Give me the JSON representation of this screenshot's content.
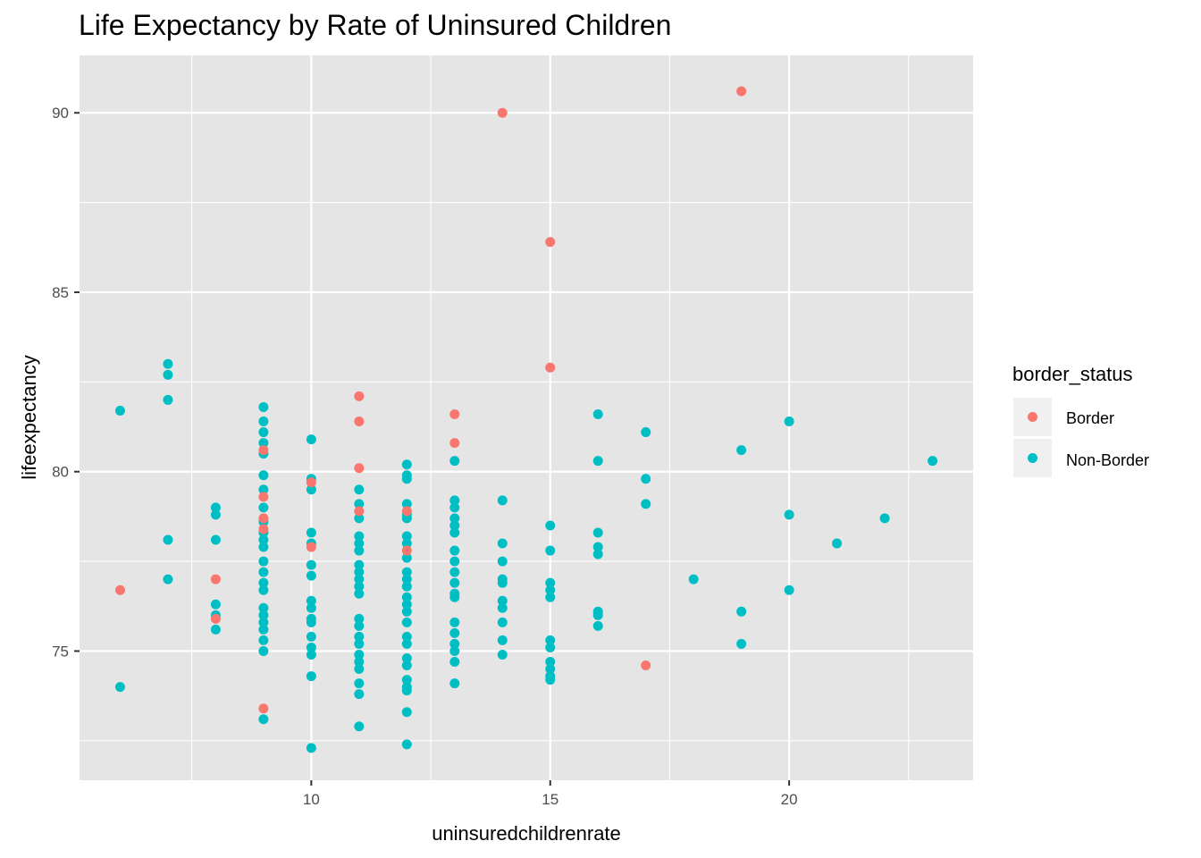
{
  "chart_data": {
    "type": "scatter",
    "title": "Life Expectancy by Rate of Uninsured Children",
    "xlabel": "uninsuredchildrenrate",
    "ylabel": "lifeexpectancy",
    "xlim": [
      5.15,
      23.85
    ],
    "ylim": [
      71.4,
      91.6
    ],
    "x_ticks": [
      10,
      15,
      20
    ],
    "x_minor": [
      7.5,
      12.5,
      17.5,
      22.5
    ],
    "y_ticks": [
      75,
      80,
      85,
      90
    ],
    "y_minor": [
      72.5,
      77.5,
      82.5,
      87.5
    ],
    "x_tick_labels": [
      "10",
      "15",
      "20"
    ],
    "y_tick_labels": [
      "75",
      "80",
      "85",
      "90"
    ],
    "grid": true,
    "legend": {
      "title": "border_status",
      "placement": "right",
      "entries": [
        "Border",
        "Non-Border"
      ]
    },
    "colors": {
      "panel": "#e5e5e5",
      "grid": "#ffffff",
      "legend_key": "#f0f0f0",
      "Border": "#f8766d",
      "Non-Border": "#00bfc4"
    },
    "series": [
      {
        "name": "Border",
        "points": [
          [
            6,
            76.7
          ],
          [
            8,
            77.0
          ],
          [
            8,
            75.9
          ],
          [
            9,
            80.6
          ],
          [
            9,
            79.3
          ],
          [
            9,
            78.7
          ],
          [
            9,
            78.4
          ],
          [
            9,
            73.4
          ],
          [
            10,
            79.7
          ],
          [
            10,
            77.9
          ],
          [
            11,
            82.1
          ],
          [
            11,
            81.4
          ],
          [
            11,
            80.1
          ],
          [
            11,
            78.9
          ],
          [
            12,
            77.8
          ],
          [
            12,
            78.9
          ],
          [
            13,
            81.6
          ],
          [
            13,
            80.8
          ],
          [
            14,
            90.0
          ],
          [
            15,
            86.4
          ],
          [
            15,
            82.9
          ],
          [
            17,
            74.6
          ],
          [
            19,
            90.6
          ]
        ]
      },
      {
        "name": "Non-Border",
        "points": [
          [
            6,
            81.7
          ],
          [
            6,
            74.0
          ],
          [
            7,
            83.0
          ],
          [
            7,
            82.7
          ],
          [
            7,
            82.0
          ],
          [
            7,
            78.1
          ],
          [
            7,
            77.0
          ],
          [
            8,
            79.0
          ],
          [
            8,
            78.8
          ],
          [
            8,
            78.1
          ],
          [
            8,
            76.3
          ],
          [
            8,
            76.0
          ],
          [
            8,
            75.6
          ],
          [
            9,
            81.8
          ],
          [
            9,
            81.4
          ],
          [
            9,
            81.1
          ],
          [
            9,
            80.8
          ],
          [
            9,
            80.5
          ],
          [
            9,
            79.9
          ],
          [
            9,
            79.5
          ],
          [
            9,
            79.0
          ],
          [
            9,
            78.6
          ],
          [
            9,
            78.3
          ],
          [
            9,
            78.1
          ],
          [
            9,
            77.9
          ],
          [
            9,
            77.5
          ],
          [
            9,
            77.2
          ],
          [
            9,
            76.9
          ],
          [
            9,
            76.7
          ],
          [
            9,
            76.2
          ],
          [
            9,
            76.0
          ],
          [
            9,
            75.8
          ],
          [
            9,
            75.6
          ],
          [
            9,
            75.3
          ],
          [
            9,
            75.0
          ],
          [
            9,
            73.1
          ],
          [
            10,
            80.9
          ],
          [
            10,
            79.8
          ],
          [
            10,
            79.5
          ],
          [
            10,
            78.3
          ],
          [
            10,
            78.0
          ],
          [
            10,
            77.4
          ],
          [
            10,
            77.1
          ],
          [
            10,
            76.4
          ],
          [
            10,
            76.2
          ],
          [
            10,
            75.9
          ],
          [
            10,
            75.8
          ],
          [
            10,
            75.4
          ],
          [
            10,
            75.1
          ],
          [
            10,
            74.9
          ],
          [
            10,
            74.3
          ],
          [
            10,
            72.3
          ],
          [
            11,
            79.5
          ],
          [
            11,
            79.1
          ],
          [
            11,
            78.7
          ],
          [
            11,
            78.2
          ],
          [
            11,
            78.0
          ],
          [
            11,
            77.8
          ],
          [
            11,
            77.4
          ],
          [
            11,
            77.2
          ],
          [
            11,
            77.0
          ],
          [
            11,
            76.8
          ],
          [
            11,
            76.6
          ],
          [
            11,
            75.9
          ],
          [
            11,
            75.7
          ],
          [
            11,
            75.4
          ],
          [
            11,
            75.2
          ],
          [
            11,
            74.9
          ],
          [
            11,
            74.7
          ],
          [
            11,
            74.5
          ],
          [
            11,
            74.1
          ],
          [
            11,
            73.8
          ],
          [
            11,
            72.9
          ],
          [
            12,
            80.2
          ],
          [
            12,
            79.9
          ],
          [
            12,
            79.8
          ],
          [
            12,
            79.1
          ],
          [
            12,
            78.8
          ],
          [
            12,
            78.7
          ],
          [
            12,
            78.2
          ],
          [
            12,
            78.0
          ],
          [
            12,
            77.6
          ],
          [
            12,
            77.2
          ],
          [
            12,
            77.0
          ],
          [
            12,
            76.8
          ],
          [
            12,
            76.5
          ],
          [
            12,
            76.3
          ],
          [
            12,
            76.1
          ],
          [
            12,
            75.8
          ],
          [
            12,
            75.4
          ],
          [
            12,
            75.2
          ],
          [
            12,
            74.8
          ],
          [
            12,
            74.6
          ],
          [
            12,
            74.2
          ],
          [
            12,
            74.0
          ],
          [
            12,
            73.9
          ],
          [
            12,
            73.3
          ],
          [
            12,
            72.4
          ],
          [
            13,
            80.3
          ],
          [
            13,
            79.2
          ],
          [
            13,
            79.0
          ],
          [
            13,
            78.7
          ],
          [
            13,
            78.5
          ],
          [
            13,
            78.3
          ],
          [
            13,
            77.8
          ],
          [
            13,
            77.5
          ],
          [
            13,
            77.2
          ],
          [
            13,
            76.9
          ],
          [
            13,
            76.6
          ],
          [
            13,
            76.5
          ],
          [
            13,
            75.8
          ],
          [
            13,
            75.5
          ],
          [
            13,
            75.2
          ],
          [
            13,
            75.0
          ],
          [
            13,
            74.7
          ],
          [
            13,
            74.1
          ],
          [
            14,
            79.2
          ],
          [
            14,
            78.0
          ],
          [
            14,
            77.5
          ],
          [
            14,
            77.0
          ],
          [
            14,
            76.9
          ],
          [
            14,
            76.4
          ],
          [
            14,
            76.2
          ],
          [
            14,
            75.8
          ],
          [
            14,
            75.3
          ],
          [
            14,
            74.9
          ],
          [
            15,
            78.5
          ],
          [
            15,
            77.8
          ],
          [
            15,
            76.9
          ],
          [
            15,
            76.7
          ],
          [
            15,
            76.5
          ],
          [
            15,
            75.3
          ],
          [
            15,
            75.1
          ],
          [
            15,
            74.7
          ],
          [
            15,
            74.5
          ],
          [
            15,
            74.3
          ],
          [
            15,
            74.2
          ],
          [
            16,
            81.6
          ],
          [
            16,
            80.3
          ],
          [
            16,
            78.3
          ],
          [
            16,
            77.9
          ],
          [
            16,
            77.7
          ],
          [
            16,
            76.1
          ],
          [
            16,
            76.0
          ],
          [
            16,
            75.7
          ],
          [
            17,
            81.1
          ],
          [
            17,
            79.8
          ],
          [
            17,
            79.1
          ],
          [
            18,
            77.0
          ],
          [
            19,
            80.6
          ],
          [
            19,
            76.1
          ],
          [
            19,
            75.2
          ],
          [
            20,
            81.4
          ],
          [
            20,
            78.8
          ],
          [
            20,
            76.7
          ],
          [
            21,
            78.0
          ],
          [
            22,
            78.7
          ],
          [
            23,
            80.3
          ]
        ]
      }
    ]
  }
}
